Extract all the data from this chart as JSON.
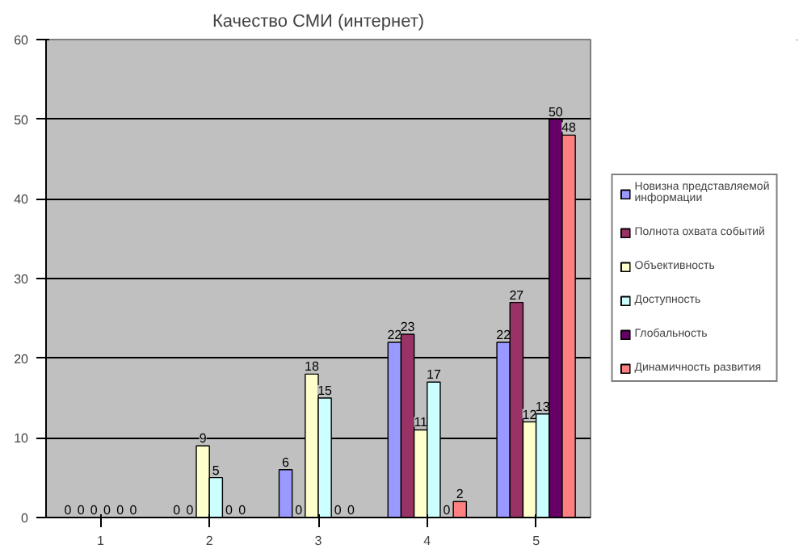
{
  "chart_data": {
    "type": "bar",
    "title": "Качество СМИ (интернет)",
    "categories": [
      "1",
      "2",
      "3",
      "4",
      "5"
    ],
    "series": [
      {
        "name": "Новизна представляемой информации",
        "color": "#9999ff",
        "values": [
          0,
          0,
          6,
          22,
          22
        ]
      },
      {
        "name": "Полнота охвата событий",
        "color": "#993366",
        "values": [
          0,
          0,
          0,
          23,
          27
        ]
      },
      {
        "name": "Объективность",
        "color": "#ffffcc",
        "values": [
          0,
          9,
          18,
          11,
          12
        ]
      },
      {
        "name": "Доступность",
        "color": "#ccffff",
        "values": [
          0,
          5,
          15,
          17,
          13
        ]
      },
      {
        "name": "Глобальность",
        "color": "#660066",
        "values": [
          0,
          0,
          0,
          0,
          50
        ]
      },
      {
        "name": "Динамичность развития",
        "color": "#ff8080",
        "values": [
          0,
          0,
          0,
          2,
          48
        ]
      }
    ],
    "ylim": [
      0,
      60
    ],
    "yticks": [
      0,
      10,
      20,
      30,
      40,
      50,
      60
    ],
    "grid": "y",
    "legend": "right",
    "data_labels": true
  }
}
